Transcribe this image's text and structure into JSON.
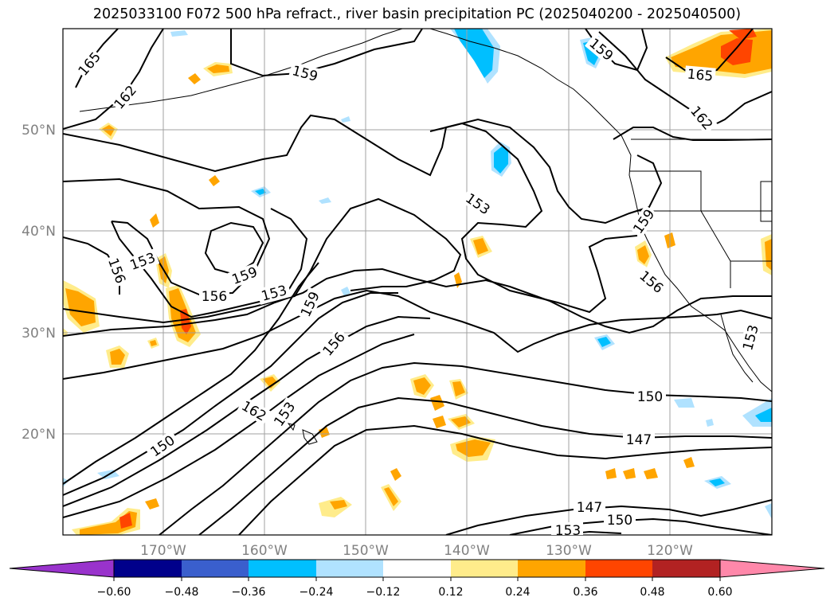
{
  "title": "2025033100 F072 500 hPa refract., river basin precipitation PC (2025040200 - 2025040500)",
  "lat_labels": [
    "50°N",
    "40°N",
    "30°N",
    "20°N"
  ],
  "lon_labels": [
    "170°W",
    "160°W",
    "150°W",
    "140°W",
    "130°W",
    "120°W"
  ],
  "contour_labels": [
    "165",
    "162",
    "159",
    "159",
    "165",
    "162",
    "153",
    "159",
    "156",
    "153",
    "159",
    "156",
    "153",
    "159",
    "156",
    "156",
    "153",
    "150",
    "147",
    "162",
    "153",
    "150",
    "147",
    "150",
    "153"
  ],
  "colorbar": {
    "ticks": [
      "−0.60",
      "−0.48",
      "−0.36",
      "−0.24",
      "−0.12",
      "0.12",
      "0.24",
      "0.36",
      "0.48",
      "0.60"
    ],
    "colors": [
      "#9933cc",
      "#00008b",
      "#3a5fcd",
      "#00bfff",
      "#b0e2ff",
      "#ffffff",
      "#ffec8b",
      "#ffa500",
      "#ff4500",
      "#b22222",
      "#ff88aa"
    ]
  },
  "fill_colors": {
    "yellow": "#ffec8b",
    "orange": "#ffa500",
    "red": "#ff4500",
    "lightblue": "#b0e2ff",
    "blue": "#00bfff"
  }
}
